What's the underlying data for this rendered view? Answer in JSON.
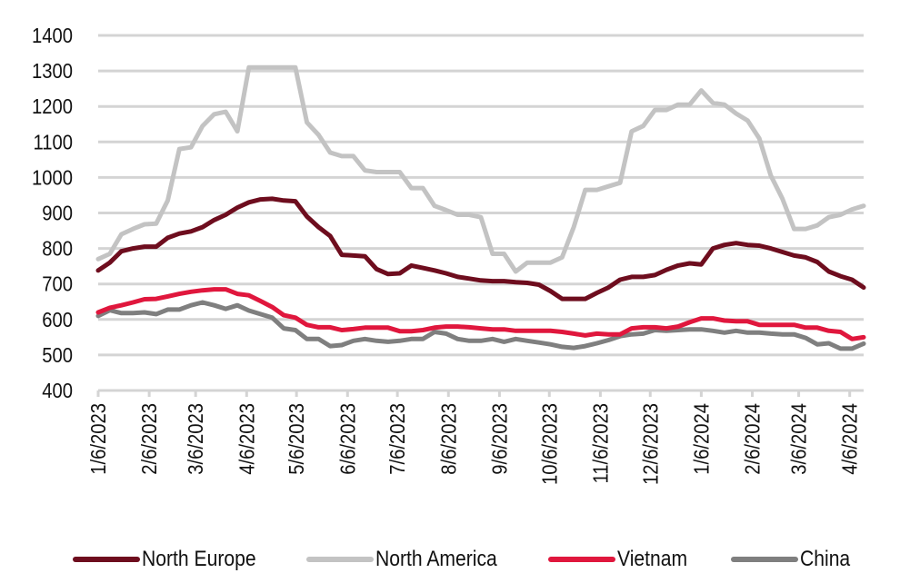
{
  "chart_data": {
    "type": "line",
    "title": "",
    "xlabel": "",
    "ylabel": "",
    "ylim": [
      400,
      1400
    ],
    "yticks": [
      400,
      500,
      600,
      700,
      800,
      900,
      1000,
      1100,
      1200,
      1300,
      1400
    ],
    "ytick_labels": [
      "400",
      "500",
      "600",
      "700",
      "800",
      "900",
      "1000",
      "1100",
      "1200",
      "1300",
      "1400"
    ],
    "x_tick_labels": [
      "1/6/2023",
      "2/6/2023",
      "3/6/2023",
      "4/6/2023",
      "5/6/2023",
      "6/6/2023",
      "7/6/2023",
      "8/6/2023",
      "9/6/2023",
      "10/6/2023",
      "11/6/2023",
      "12/6/2023",
      "1/6/2024",
      "2/6/2024",
      "3/6/2024",
      "4/6/2024"
    ],
    "x_tick_week_index": [
      0,
      4.4,
      8.4,
      12.8,
      17.1,
      21.5,
      25.8,
      30.2,
      34.6,
      38.9,
      43.3,
      47.6,
      52.0,
      56.4,
      60.4,
      64.8
    ],
    "x_frequency": "weekly",
    "grid": true,
    "legend_position": "bottom",
    "series": [
      {
        "name": "North Europe",
        "color": "#6e0d1e",
        "values": [
          738,
          760,
          792,
          800,
          805,
          805,
          830,
          842,
          848,
          860,
          880,
          895,
          915,
          930,
          938,
          940,
          935,
          933,
          890,
          860,
          835,
          782,
          780,
          778,
          742,
          728,
          730,
          752,
          745,
          738,
          730,
          720,
          715,
          710,
          708,
          708,
          705,
          703,
          698,
          680,
          658,
          658,
          658,
          675,
          690,
          712,
          720,
          720,
          725,
          740,
          752,
          758,
          755,
          800,
          810,
          815,
          810,
          808,
          800,
          790,
          780,
          775,
          762,
          735,
          722,
          712,
          690
        ]
      },
      {
        "name": "North America",
        "color": "#c3c3c3",
        "values": [
          770,
          785,
          840,
          855,
          868,
          870,
          935,
          1080,
          1085,
          1145,
          1178,
          1185,
          1130,
          1310,
          1310,
          1310,
          1310,
          1310,
          1155,
          1120,
          1070,
          1060,
          1060,
          1020,
          1015,
          1015,
          1015,
          970,
          970,
          920,
          908,
          895,
          895,
          888,
          785,
          785,
          735,
          760,
          760,
          760,
          775,
          860,
          965,
          965,
          975,
          985,
          1130,
          1145,
          1190,
          1190,
          1205,
          1205,
          1245,
          1210,
          1205,
          1180,
          1160,
          1110,
          1005,
          940,
          855,
          855,
          865,
          888,
          895,
          910,
          920
        ]
      },
      {
        "name": "Vietnam",
        "color": "#e0173d",
        "values": [
          620,
          633,
          640,
          648,
          657,
          658,
          665,
          672,
          678,
          682,
          685,
          685,
          672,
          668,
          652,
          635,
          612,
          605,
          585,
          578,
          578,
          570,
          573,
          577,
          577,
          577,
          567,
          567,
          570,
          577,
          580,
          580,
          578,
          575,
          572,
          572,
          568,
          568,
          568,
          568,
          565,
          560,
          555,
          560,
          558,
          558,
          575,
          578,
          578,
          575,
          580,
          592,
          603,
          603,
          597,
          595,
          595,
          585,
          585,
          585,
          585,
          577,
          577,
          568,
          565,
          545,
          550
        ]
      },
      {
        "name": "China",
        "color": "#7f7f7f",
        "values": [
          610,
          626,
          618,
          618,
          620,
          615,
          628,
          628,
          640,
          648,
          640,
          630,
          640,
          625,
          615,
          605,
          575,
          570,
          545,
          545,
          525,
          528,
          540,
          545,
          540,
          537,
          540,
          545,
          545,
          565,
          560,
          545,
          540,
          540,
          545,
          537,
          545,
          540,
          535,
          530,
          523,
          520,
          525,
          533,
          542,
          553,
          558,
          560,
          570,
          568,
          570,
          572,
          572,
          568,
          563,
          568,
          563,
          563,
          560,
          558,
          558,
          548,
          530,
          533,
          518,
          518,
          532
        ]
      }
    ]
  }
}
